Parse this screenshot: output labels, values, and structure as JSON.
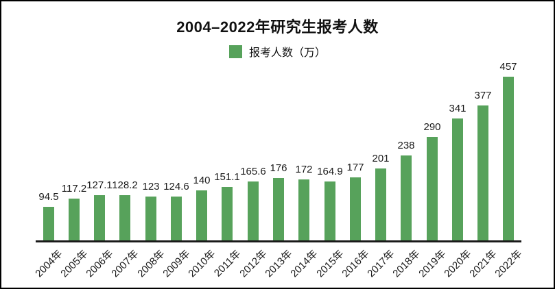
{
  "window": {
    "background": "#ffffff",
    "border_color": "#000000"
  },
  "chart_data": {
    "type": "bar",
    "title": "2004–2022年研究生报考人数",
    "legend_label": "报考人数（万）",
    "legend_position": "top",
    "bar_color": "#57a25b",
    "axis_color": "#1a1a1a",
    "grid": false,
    "x_tick_rotation": -45,
    "ylim": [
      0,
      480
    ],
    "xlabel": "",
    "ylabel": "",
    "categories": [
      "2004年",
      "2005年",
      "2006年",
      "2007年",
      "2008年",
      "2009年",
      "2010年",
      "2011年",
      "2012年",
      "2013年",
      "2014年",
      "2015年",
      "2016年",
      "2017年",
      "2018年",
      "2019年",
      "2020年",
      "2021年",
      "2022年"
    ],
    "series": [
      {
        "name": "报考人数（万）",
        "values": [
          94.5,
          117.2,
          127.1,
          128.2,
          123,
          124.6,
          140,
          151.1,
          165.6,
          176,
          172,
          164.9,
          177,
          201,
          238,
          290,
          341,
          377,
          457
        ]
      }
    ],
    "value_labels": [
      "94.5",
      "117.2",
      "127.1",
      "128.2",
      "123",
      "124.6",
      "140",
      "151.1",
      "165.6",
      "176",
      "172",
      "164.9",
      "177",
      "201",
      "238",
      "290",
      "341",
      "377",
      "457"
    ]
  }
}
